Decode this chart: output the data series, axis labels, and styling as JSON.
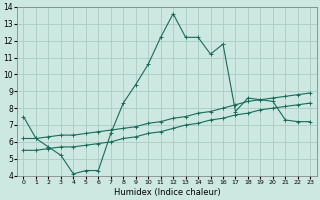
{
  "title": "",
  "xlabel": "Humidex (Indice chaleur)",
  "xlim": [
    -0.5,
    23.5
  ],
  "ylim": [
    4,
    14
  ],
  "xticks": [
    0,
    1,
    2,
    3,
    4,
    5,
    6,
    7,
    8,
    9,
    10,
    11,
    12,
    13,
    14,
    15,
    16,
    17,
    18,
    19,
    20,
    21,
    22,
    23
  ],
  "yticks": [
    4,
    5,
    6,
    7,
    8,
    9,
    10,
    11,
    12,
    13,
    14
  ],
  "bg_color": "#cce8e0",
  "grid_color": "#aaccC4",
  "line_color": "#1a6b5a",
  "line1_x": [
    0,
    1,
    2,
    3,
    4,
    5,
    6,
    7,
    8,
    9,
    10,
    11,
    12,
    13,
    14,
    15,
    16,
    17,
    18,
    19,
    20,
    21,
    22,
    23
  ],
  "line1_y": [
    7.5,
    6.2,
    5.7,
    5.2,
    4.1,
    4.3,
    4.3,
    6.5,
    8.3,
    9.4,
    10.6,
    12.2,
    13.6,
    12.2,
    12.2,
    11.2,
    11.8,
    7.8,
    8.6,
    8.5,
    8.4,
    7.3,
    7.2,
    7.2
  ],
  "line2_x": [
    0,
    1,
    2,
    3,
    4,
    5,
    6,
    7,
    8,
    9,
    10,
    11,
    12,
    13,
    14,
    15,
    16,
    17,
    18,
    19,
    20,
    21,
    22,
    23
  ],
  "line2_y": [
    5.5,
    5.5,
    5.6,
    5.7,
    5.7,
    5.8,
    5.9,
    6.0,
    6.2,
    6.3,
    6.5,
    6.6,
    6.8,
    7.0,
    7.1,
    7.3,
    7.4,
    7.6,
    7.7,
    7.9,
    8.0,
    8.1,
    8.2,
    8.3
  ],
  "line3_x": [
    0,
    1,
    2,
    3,
    4,
    5,
    6,
    7,
    8,
    9,
    10,
    11,
    12,
    13,
    14,
    15,
    16,
    17,
    18,
    19,
    20,
    21,
    22,
    23
  ],
  "line3_y": [
    6.2,
    6.2,
    6.3,
    6.4,
    6.4,
    6.5,
    6.6,
    6.7,
    6.8,
    6.9,
    7.1,
    7.2,
    7.4,
    7.5,
    7.7,
    7.8,
    8.0,
    8.2,
    8.4,
    8.5,
    8.6,
    8.7,
    8.8,
    8.9
  ],
  "xlabel_fontsize": 6,
  "tick_fontsize_x": 4.5,
  "tick_fontsize_y": 5.5
}
